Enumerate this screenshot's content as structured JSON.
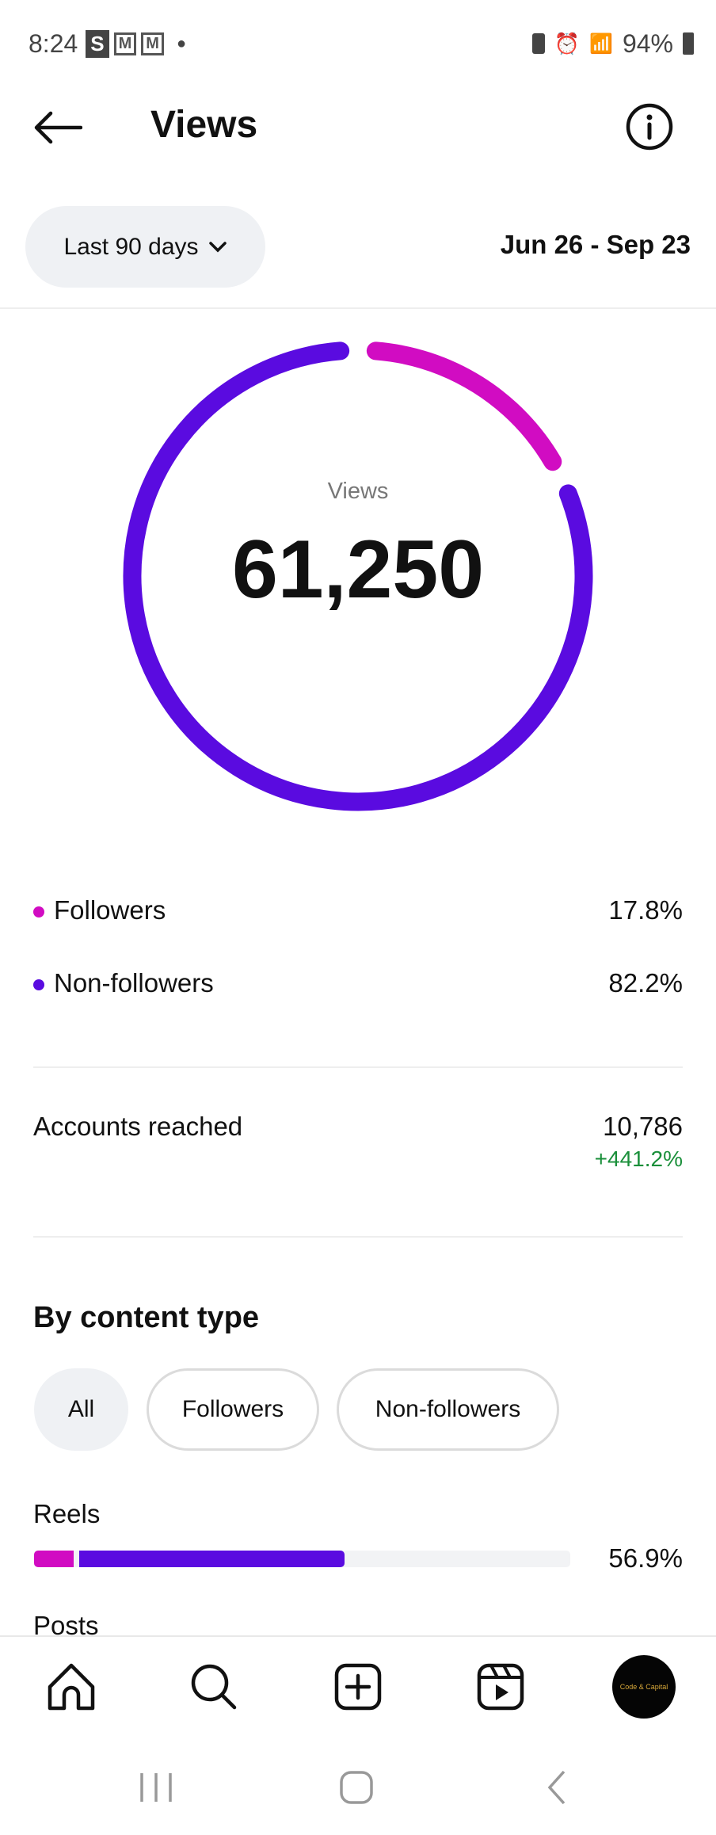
{
  "status_bar": {
    "time": "8:24",
    "notif_s": "S",
    "notif_m1": "M",
    "notif_m2": "M",
    "battery": "94%"
  },
  "header": {
    "title": "Views"
  },
  "filter": {
    "period": "Last 90 days",
    "date_range": "Jun 26 - Sep 23"
  },
  "donut": {
    "label": "Views",
    "total": "61,250",
    "followers_pct": 17.8,
    "non_followers_pct": 82.2,
    "colors": {
      "followers": "#d10cc2",
      "non_followers": "#5a0be0"
    }
  },
  "legend": [
    {
      "label": "Followers",
      "value": "17.8%",
      "color": "#d10cc2"
    },
    {
      "label": "Non-followers",
      "value": "82.2%",
      "color": "#5a0be0"
    }
  ],
  "accounts": {
    "label": "Accounts reached",
    "value": "10,786",
    "change": "+441.2%",
    "change_color": "#1a8f3a"
  },
  "content_type": {
    "title": "By content type",
    "chips": [
      "All",
      "Followers",
      "Non-followers"
    ],
    "selected": "All",
    "items": [
      {
        "label": "Reels",
        "value": "56.9%",
        "followers_pct": 7.4,
        "total_pct": 56.9
      },
      {
        "label": "Posts"
      }
    ]
  },
  "profile": {
    "logo_text": "Code & Capital"
  }
}
